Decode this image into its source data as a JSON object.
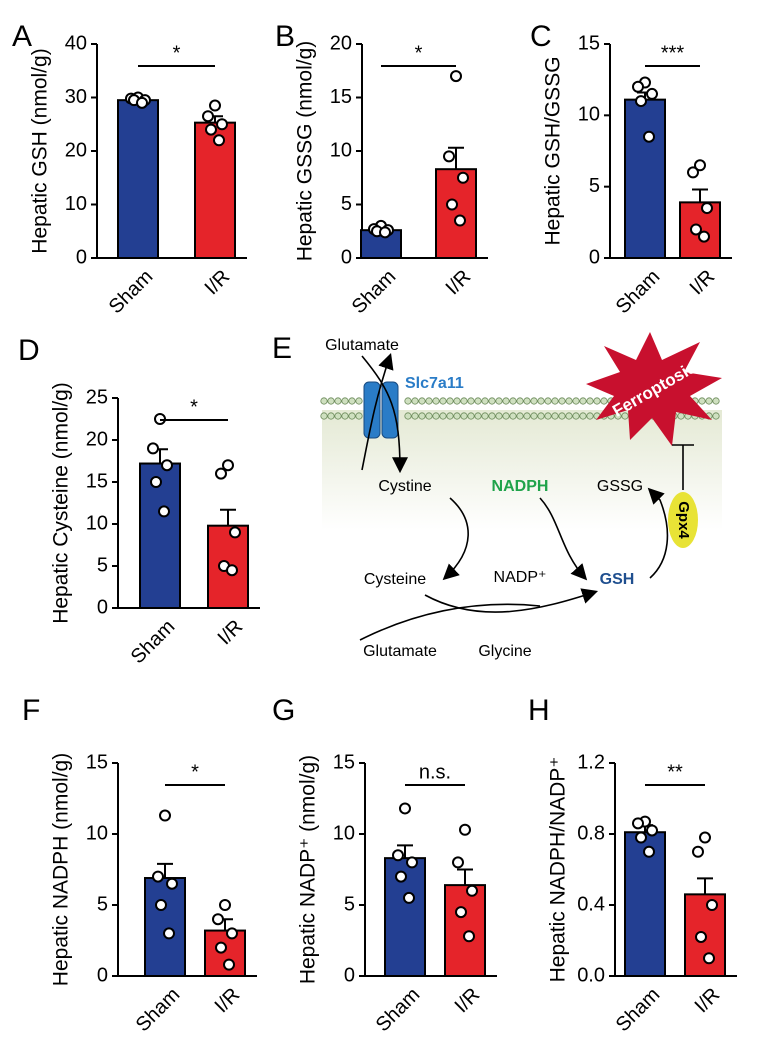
{
  "chart_data": [
    {
      "type": "bar",
      "panel": "A",
      "ylabel": "Hepatic GSH (nmol/g)",
      "categories": [
        "Sham",
        "I/R"
      ],
      "values": [
        29.5,
        25.3
      ],
      "errors": [
        0.5,
        1.2
      ],
      "points": [
        [
          30,
          29.8,
          29.5,
          29.5,
          29
        ],
        [
          28.5,
          26.5,
          25,
          24,
          22
        ]
      ],
      "colors": [
        "#233f92",
        "#e5242a"
      ],
      "significance": "*",
      "ylim": [
        0,
        40
      ],
      "yticks": [
        0,
        10,
        20,
        30,
        40
      ]
    },
    {
      "type": "bar",
      "panel": "B",
      "ylabel": "Hepatic GSSG (nmol/g)",
      "categories": [
        "Sham",
        "I/R"
      ],
      "values": [
        2.6,
        8.3
      ],
      "errors": [
        0.3,
        2
      ],
      "points": [
        [
          3,
          2.7,
          2.6,
          2.5,
          2.4
        ],
        [
          17,
          9.5,
          7.5,
          5,
          3.5
        ]
      ],
      "colors": [
        "#233f92",
        "#e5242a"
      ],
      "significance": "*",
      "ylim": [
        0,
        20
      ],
      "yticks": [
        0,
        5,
        10,
        15,
        20
      ]
    },
    {
      "type": "bar",
      "panel": "C",
      "ylabel": "Hepatic GSH/GSSG",
      "categories": [
        "Sham",
        "I/R"
      ],
      "values": [
        11.1,
        3.9
      ],
      "errors": [
        0.5,
        0.9
      ],
      "points": [
        [
          12.3,
          12,
          11.5,
          11,
          8.5
        ],
        [
          6.5,
          6,
          3.5,
          2,
          1.5
        ]
      ],
      "colors": [
        "#233f92",
        "#e5242a"
      ],
      "significance": "***",
      "ylim": [
        0,
        15
      ],
      "yticks": [
        0,
        5,
        10,
        15
      ]
    },
    {
      "type": "bar",
      "panel": "D",
      "ylabel": "Hepatic Cysteine (nmol/g)",
      "categories": [
        "Sham",
        "I/R"
      ],
      "values": [
        17.2,
        9.8
      ],
      "errors": [
        1.7,
        1.9
      ],
      "points": [
        [
          22.5,
          19,
          17,
          15,
          11.5
        ],
        [
          17,
          16,
          9,
          5,
          4.5
        ]
      ],
      "colors": [
        "#233f92",
        "#e5242a"
      ],
      "significance": "*",
      "ylim": [
        0,
        25
      ],
      "yticks": [
        0,
        5,
        10,
        15,
        20,
        25
      ]
    },
    {
      "type": "bar",
      "panel": "F",
      "ylabel": "Hepatic NADPH (nmol/g)",
      "categories": [
        "Sham",
        "I/R"
      ],
      "values": [
        6.9,
        3.2
      ],
      "errors": [
        1,
        0.8
      ],
      "points": [
        [
          11.3,
          7,
          6.5,
          5,
          3
        ],
        [
          5,
          4,
          3,
          2,
          0.8
        ]
      ],
      "colors": [
        "#233f92",
        "#e5242a"
      ],
      "significance": "*",
      "ylim": [
        0,
        15
      ],
      "yticks": [
        0,
        5,
        10,
        15
      ]
    },
    {
      "type": "bar",
      "panel": "G",
      "ylabel": "Hepatic NADP⁺ (nmol/g)",
      "categories": [
        "Sham",
        "I/R"
      ],
      "values": [
        8.3,
        6.4
      ],
      "errors": [
        0.9,
        1.1
      ],
      "points": [
        [
          11.8,
          8.5,
          8,
          7,
          5.5
        ],
        [
          10.3,
          8,
          6,
          4.5,
          2.8
        ]
      ],
      "colors": [
        "#233f92",
        "#e5242a"
      ],
      "significance": "n.s.",
      "ylim": [
        0,
        15
      ],
      "yticks": [
        0,
        5,
        10,
        15
      ]
    },
    {
      "type": "bar",
      "panel": "H",
      "ylabel": "Hepatic NADPH/NADP⁺",
      "categories": [
        "Sham",
        "I/R"
      ],
      "values": [
        0.81,
        0.46
      ],
      "errors": [
        0.04,
        0.09
      ],
      "points": [
        [
          0.87,
          0.86,
          0.82,
          0.78,
          0.7
        ],
        [
          0.78,
          0.7,
          0.4,
          0.22,
          0.1
        ]
      ],
      "colors": [
        "#233f92",
        "#e5242a"
      ],
      "significance": "**",
      "ylim": [
        0,
        1.2
      ],
      "yticks": [
        {
          "value": 0,
          "label": "0.0"
        },
        0.4,
        0.8,
        1.2
      ]
    }
  ],
  "diagram": {
    "panel": "E",
    "labels": [
      "Glutamate",
      "Slc7a11",
      "Ferroptosis",
      "Cystine",
      "NADPH",
      "GSSG",
      "Gpx4",
      "Cysteine",
      "NADP⁺",
      "GSH",
      "Glutamate",
      "Glycine"
    ]
  }
}
